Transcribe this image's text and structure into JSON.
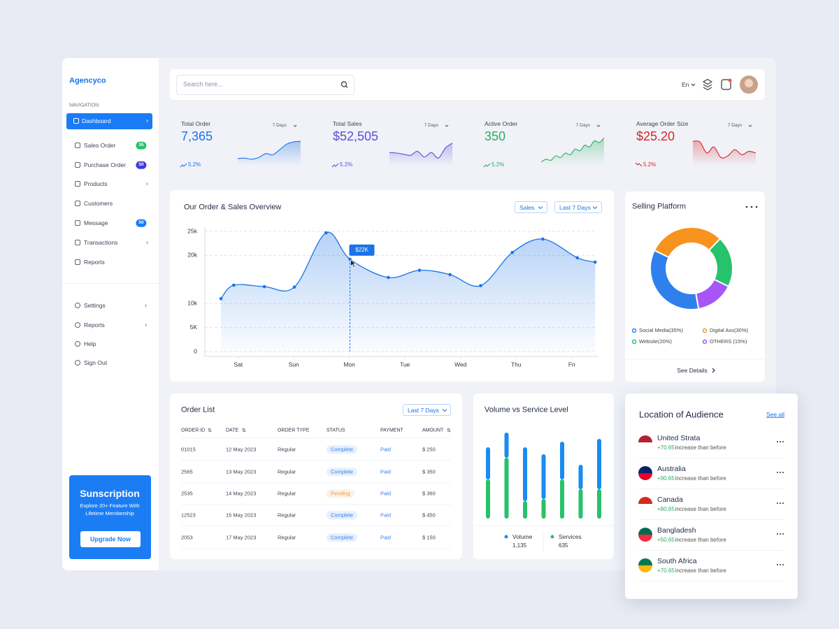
{
  "sidebar": {
    "brand": "Agencyco",
    "section": "NAVIGATION",
    "menu": [
      {
        "label": "Dashboard"
      },
      {
        "label": "Sales Order",
        "badge": "35"
      },
      {
        "label": "Purchase Order",
        "badge": "50"
      },
      {
        "label": "Products"
      },
      {
        "label": "Customers"
      },
      {
        "label": "Message",
        "badge": "50"
      },
      {
        "label": "Transactions"
      },
      {
        "label": "Reports"
      }
    ],
    "menu2": [
      {
        "label": "Settings"
      },
      {
        "label": "Reports"
      },
      {
        "label": "Help"
      },
      {
        "label": "Sign Out"
      }
    ],
    "promo": {
      "title": "Sunscription",
      "text": "Explore 20+ Feature With Lifetime Membership",
      "button": "Upgrade Now"
    }
  },
  "header": {
    "search": "Search here...",
    "language": "En"
  },
  "stats": [
    {
      "label": "Total Order",
      "value": "7,365",
      "period": "7 Days",
      "change": "5.2%",
      "color": "#1a73e8",
      "trend": [
        20,
        22,
        18,
        24,
        38,
        34,
        52,
        72,
        80,
        82
      ]
    },
    {
      "label": "Total Sales",
      "value": "$52,505",
      "period": "7 Days",
      "change": "5.2%",
      "color": "#5b4fd6",
      "trend": [
        42,
        40,
        36,
        32,
        46,
        26,
        42,
        22,
        58,
        76
      ]
    },
    {
      "label": "Active Order",
      "value": "350",
      "period": "7 Days",
      "change": "5.2%",
      "color": "#27ae60",
      "trend": [
        8,
        18,
        14,
        30,
        24,
        40,
        34,
        54,
        48,
        68,
        62,
        84,
        78,
        94
      ]
    },
    {
      "label": "Average Order Size",
      "value": "$25.20",
      "period": "7 Days",
      "change": "5.2%",
      "color": "#d62828",
      "trend": [
        82,
        80,
        40,
        62,
        24,
        30,
        52,
        34,
        46,
        40
      ]
    }
  ],
  "chart_data": [
    {
      "type": "line",
      "title": "Our Order & Sales Overview",
      "filters": [
        "Sales",
        "Last 7 Days"
      ],
      "annotation": "$22K",
      "x": [
        -0.31,
        -0.08,
        0.47,
        1.01,
        1.58,
        2.01,
        2.7,
        3.26,
        3.81,
        4.36,
        4.93,
        5.48,
        6.1,
        6.42
      ],
      "xlim": [
        -0.6,
        6.43
      ],
      "xticks": [
        {
          "value": 0,
          "label": "Sat"
        },
        {
          "value": 1,
          "label": "Sun"
        },
        {
          "value": 2,
          "label": "Mon"
        },
        {
          "value": 3,
          "label": "Tue"
        },
        {
          "value": 4,
          "label": "Wed"
        },
        {
          "value": 5,
          "label": "Thu"
        },
        {
          "value": 6,
          "label": "Fri"
        }
      ],
      "ylim": [
        0,
        25
      ],
      "yticks": [
        0,
        {
          "value": 5,
          "label": "5K"
        },
        {
          "value": 10,
          "label": "10k"
        },
        {
          "value": 20,
          "label": "20k"
        },
        {
          "value": 25,
          "label": "25k"
        }
      ],
      "grid": true,
      "series": [
        {
          "color": "#1a73e8",
          "values": [
            11.0,
            13.8,
            13.5,
            13.4,
            24.7,
            19.2,
            15.4,
            16.9,
            16.0,
            13.7,
            20.6,
            23.4,
            19.5,
            18.6
          ]
        }
      ]
    },
    {
      "type": "pie",
      "title": "Selling Platform",
      "link": "See Details",
      "categories": [
        "Social Media(35%)",
        "Digital Ass(30%)",
        "Website(20%)",
        "OTHERS (15%)"
      ],
      "values": [
        35,
        30,
        20,
        15
      ],
      "colors": [
        "#2f80ed",
        "#f7931e",
        "#27c26c",
        "#a855f7"
      ]
    },
    {
      "type": "bar",
      "title": "Volume vs Service Level",
      "stacked": true,
      "series": [
        {
          "name": "Volume",
          "total": "1,135",
          "color": "#1a8cf0",
          "values": [
            46,
            36,
            77,
            64,
            54,
            35,
            72
          ]
        },
        {
          "name": "Services",
          "total": "635",
          "color": "#27c26c",
          "values": [
            56,
            87,
            25,
            28,
            56,
            42,
            42
          ]
        }
      ]
    }
  ],
  "order_list": {
    "title": "Order List",
    "filter": "Last 7 Days",
    "columns": [
      "ORDER ID",
      "DATE",
      "ORDER TYPE",
      "STATUS",
      "PAYMENT",
      "AMOUNT"
    ],
    "rows": [
      [
        "01015",
        "12 May 2023",
        "Regular",
        "Complete",
        "Paid",
        "$ 250"
      ],
      [
        "2565",
        "13 May 2023",
        "Regular",
        "Complete",
        "Paid",
        "$ 350"
      ],
      [
        "2535",
        "14 May 2023",
        "Regular",
        "Pending",
        "Paid",
        "$ 360"
      ],
      [
        "12523",
        "15 May 2023",
        "Regular",
        "Complete",
        "Paid",
        "$ 450"
      ],
      [
        "2053",
        "17 May 2023",
        "Regular",
        "Complete",
        "Paid",
        "$ 150"
      ]
    ]
  },
  "audience": {
    "title": "Location of Audience",
    "link": "See all",
    "items": [
      {
        "country": "United Strata",
        "change": "+70.65",
        "note": "increase than before"
      },
      {
        "country": "Australia",
        "change": "+90.65",
        "note": "increase than before"
      },
      {
        "country": "Canada",
        "change": "+80.65",
        "note": "increase than before"
      },
      {
        "country": "Bangladesh",
        "change": "+50.65",
        "note": "increase than before"
      },
      {
        "country": "South Africa",
        "change": "+70.65",
        "note": "increase than before"
      }
    ]
  }
}
